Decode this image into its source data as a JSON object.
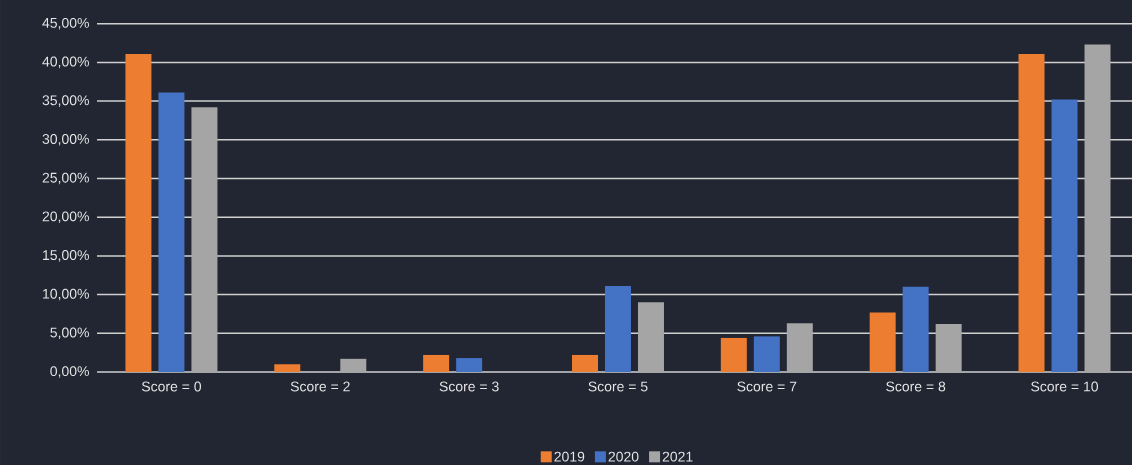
{
  "chart_data": {
    "type": "bar",
    "categories": [
      "Score = 0",
      "Score = 2",
      "Score = 3",
      "Score = 5",
      "Score = 7",
      "Score = 8",
      "Score = 10"
    ],
    "series": [
      {
        "name": "2019",
        "color": "#ed7d31",
        "values": [
          41.1,
          1.0,
          2.2,
          2.2,
          4.4,
          7.7,
          41.1
        ]
      },
      {
        "name": "2020",
        "color": "#4472c4",
        "values": [
          36.1,
          0,
          1.8,
          11.1,
          4.6,
          11.0,
          35.2
        ]
      },
      {
        "name": "2021",
        "color": "#a5a5a5",
        "values": [
          34.2,
          1.7,
          0,
          9.0,
          6.3,
          6.2,
          42.3
        ]
      }
    ],
    "ylim": [
      0,
      45
    ],
    "yticks": [
      {
        "value": 0,
        "label": "0,00%"
      },
      {
        "value": 5,
        "label": "5,00%"
      },
      {
        "value": 10,
        "label": "10,00%"
      },
      {
        "value": 15,
        "label": "15,00%"
      },
      {
        "value": 20,
        "label": "20,00%"
      },
      {
        "value": 25,
        "label": "25,00%"
      },
      {
        "value": 30,
        "label": "30,00%"
      },
      {
        "value": 35,
        "label": "35,00%"
      },
      {
        "value": 40,
        "label": "40,00%"
      },
      {
        "value": 45,
        "label": "45,00%"
      }
    ],
    "grid": "y",
    "legend": "bottom"
  }
}
